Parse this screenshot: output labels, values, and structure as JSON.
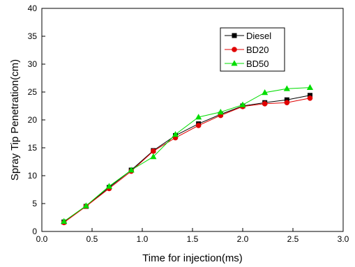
{
  "chart_data": {
    "type": "line",
    "xlabel": "Time for injection(ms)",
    "ylabel": "Spray Tip Penetration(cm)",
    "xlim": [
      0.0,
      3.0
    ],
    "ylim": [
      0,
      40
    ],
    "x_ticks": [
      "0.0",
      "0.5",
      "1.0",
      "1.5",
      "2.0",
      "2.5",
      "3.0"
    ],
    "y_ticks": [
      "0",
      "5",
      "10",
      "15",
      "20",
      "25",
      "30",
      "35",
      "40"
    ],
    "legend_position": "top-right",
    "grid": false,
    "x": [
      0.22,
      0.44,
      0.67,
      0.89,
      1.11,
      1.33,
      1.56,
      1.78,
      2.0,
      2.22,
      2.44,
      2.67
    ],
    "series": [
      {
        "name": "Diesel",
        "color": "#000000",
        "marker": "square",
        "values": [
          1.7,
          4.5,
          7.9,
          11.0,
          14.5,
          17.2,
          19.3,
          21.0,
          22.5,
          23.1,
          23.6,
          24.4
        ]
      },
      {
        "name": "BD20",
        "color": "#e00000",
        "marker": "circle",
        "values": [
          1.6,
          4.5,
          7.7,
          10.8,
          14.4,
          16.8,
          19.0,
          20.8,
          22.4,
          22.9,
          23.1,
          23.9
        ]
      },
      {
        "name": "BD50",
        "color": "#00dd00",
        "marker": "triangle",
        "values": [
          1.8,
          4.6,
          8.1,
          11.0,
          13.4,
          17.4,
          20.5,
          21.4,
          22.7,
          24.9,
          25.6,
          25.8
        ]
      }
    ]
  }
}
